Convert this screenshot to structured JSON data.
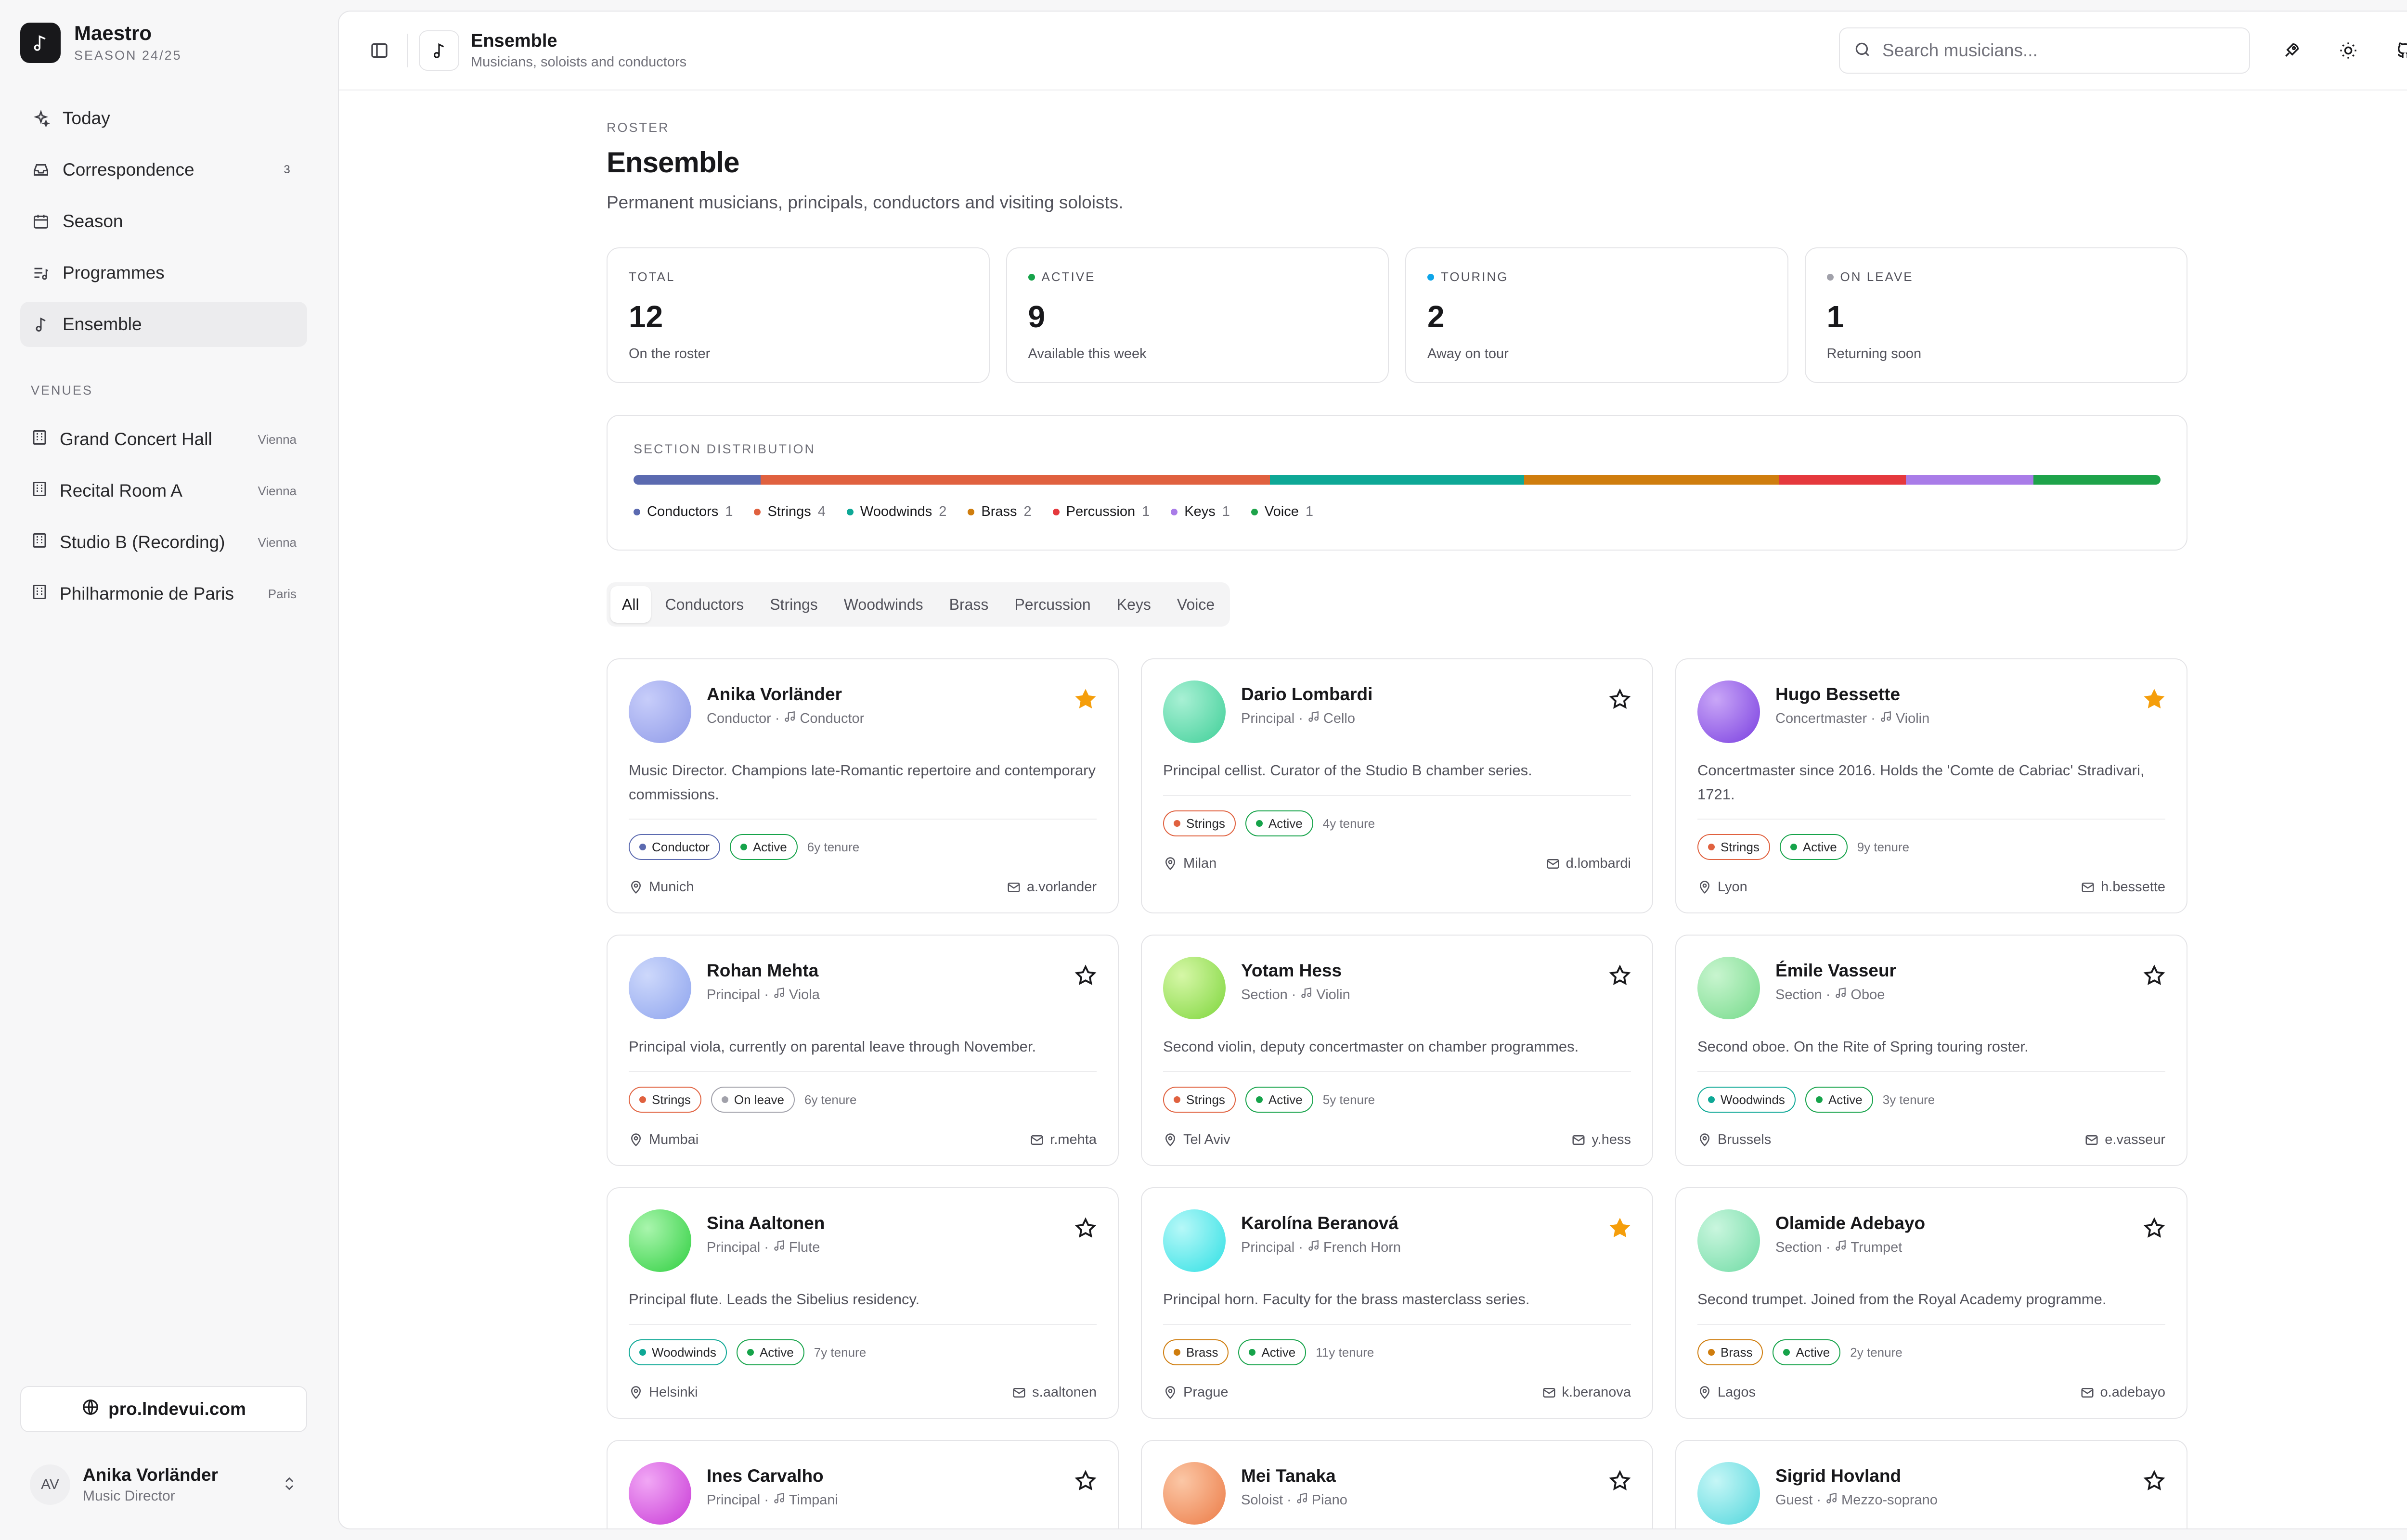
{
  "app": {
    "name": "Maestro",
    "season": "SEASON 24/25"
  },
  "nav": [
    {
      "label": "Today",
      "icon": "sparkle-icon"
    },
    {
      "label": "Correspondence",
      "icon": "inbox-icon",
      "count": "3"
    },
    {
      "label": "Season",
      "icon": "calendar-icon"
    },
    {
      "label": "Programmes",
      "icon": "list-music-icon"
    },
    {
      "label": "Ensemble",
      "icon": "music-note-icon",
      "active": true
    }
  ],
  "venues_header": "VENUES",
  "venues": [
    {
      "name": "Grand Concert Hall",
      "city": "Vienna"
    },
    {
      "name": "Recital Room A",
      "city": "Vienna"
    },
    {
      "name": "Studio B (Recording)",
      "city": "Vienna"
    },
    {
      "name": "Philharmonie de Paris",
      "city": "Paris"
    }
  ],
  "promo": "pro.lndevui.com",
  "user": {
    "initials": "AV",
    "name": "Anika Vorländer",
    "role": "Music Director"
  },
  "topbar": {
    "title": "Ensemble",
    "subtitle": "Musicians, soloists and conductors",
    "search_placeholder": "Search musicians..."
  },
  "page": {
    "eyebrow": "ROSTER",
    "title": "Ensemble",
    "lead": "Permanent musicians, principals, conductors and visiting soloists."
  },
  "stats": [
    {
      "label": "TOTAL",
      "value": "12",
      "note": "On the roster",
      "dot": ""
    },
    {
      "label": "ACTIVE",
      "value": "9",
      "note": "Available this week",
      "dot": "#16a34a"
    },
    {
      "label": "TOURING",
      "value": "2",
      "note": "Away on tour",
      "dot": "#0ea5e9"
    },
    {
      "label": "ON LEAVE",
      "value": "1",
      "note": "Returning soon",
      "dot": "#a1a1aa"
    }
  ],
  "distribution": {
    "title": "SECTION DISTRIBUTION",
    "sections": [
      {
        "name": "Conductors",
        "count": 1,
        "color": "#5b6ab0"
      },
      {
        "name": "Strings",
        "count": 4,
        "color": "#e0613f"
      },
      {
        "name": "Woodwinds",
        "count": 2,
        "color": "#0ea896"
      },
      {
        "name": "Brass",
        "count": 2,
        "color": "#cf7d0e"
      },
      {
        "name": "Percussion",
        "count": 1,
        "color": "#e5393d"
      },
      {
        "name": "Keys",
        "count": 1,
        "color": "#a97ce8"
      },
      {
        "name": "Voice",
        "count": 1,
        "color": "#1ea34a"
      }
    ]
  },
  "tabs": [
    "All",
    "Conductors",
    "Strings",
    "Woodwinds",
    "Brass",
    "Percussion",
    "Keys",
    "Voice"
  ],
  "musicians": [
    {
      "name": "Anika Vorländer",
      "rank": "Conductor",
      "instrument": "Conductor",
      "bio": "Music Director. Champions late-Romantic repertoire and contemporary commissions.",
      "section": "Conductor",
      "section_color": "#5b6ab0",
      "status": "Active",
      "tenure": "6y tenure",
      "city": "Munich",
      "handle": "a.vorlander",
      "starred": true,
      "orb": [
        "#c7cdfa",
        "#8f9ae8"
      ]
    },
    {
      "name": "Dario Lombardi",
      "rank": "Principal",
      "instrument": "Cello",
      "bio": "Principal cellist. Curator of the Studio B chamber series.",
      "section": "Strings",
      "section_color": "#e0613f",
      "status": "Active",
      "tenure": "4y tenure",
      "city": "Milan",
      "handle": "d.lombardi",
      "starred": false,
      "orb": [
        "#a8f0d4",
        "#3fcf98"
      ]
    },
    {
      "name": "Hugo Bessette",
      "rank": "Concertmaster",
      "instrument": "Violin",
      "bio": "Concertmaster since 2016. Holds the 'Comte de Cabriac' Stradivari, 1721.",
      "section": "Strings",
      "section_color": "#e0613f",
      "status": "Active",
      "tenure": "9y tenure",
      "city": "Lyon",
      "handle": "h.bessette",
      "starred": true,
      "orb": [
        "#c9a6f7",
        "#7a3fe0"
      ]
    },
    {
      "name": "Rohan Mehta",
      "rank": "Principal",
      "instrument": "Viola",
      "bio": "Principal viola, currently on parental leave through November.",
      "section": "Strings",
      "section_color": "#e0613f",
      "status": "On leave",
      "tenure": "6y tenure",
      "city": "Mumbai",
      "handle": "r.mehta",
      "starred": false,
      "orb": [
        "#cdd8fb",
        "#8ea4ee"
      ]
    },
    {
      "name": "Yotam Hess",
      "rank": "Section",
      "instrument": "Violin",
      "bio": "Second violin, deputy concertmaster on chamber programmes.",
      "section": "Strings",
      "section_color": "#e0613f",
      "status": "Active",
      "tenure": "5y tenure",
      "city": "Tel Aviv",
      "handle": "y.hess",
      "starred": false,
      "orb": [
        "#d6f7a7",
        "#7ed63c"
      ]
    },
    {
      "name": "Émile Vasseur",
      "rank": "Section",
      "instrument": "Oboe",
      "bio": "Second oboe. On the Rite of Spring touring roster.",
      "section": "Woodwinds",
      "section_color": "#0ea896",
      "status": "Active",
      "tenure": "3y tenure",
      "city": "Brussels",
      "handle": "e.vasseur",
      "starred": false,
      "orb": [
        "#c8f5cf",
        "#75da8a"
      ]
    },
    {
      "name": "Sina Aaltonen",
      "rank": "Principal",
      "instrument": "Flute",
      "bio": "Principal flute. Leads the Sibelius residency.",
      "section": "Woodwinds",
      "section_color": "#0ea896",
      "status": "Active",
      "tenure": "7y tenure",
      "city": "Helsinki",
      "handle": "s.aaltonen",
      "starred": false,
      "orb": [
        "#a9f5ad",
        "#2fcf40"
      ]
    },
    {
      "name": "Karolína Beranová",
      "rank": "Principal",
      "instrument": "French Horn",
      "bio": "Principal horn. Faculty for the brass masterclass series.",
      "section": "Brass",
      "section_color": "#cf7d0e",
      "status": "Active",
      "tenure": "11y tenure",
      "city": "Prague",
      "handle": "k.beranova",
      "starred": true,
      "orb": [
        "#b6f8f8",
        "#2fe0e4"
      ]
    },
    {
      "name": "Olamide Adebayo",
      "rank": "Section",
      "instrument": "Trumpet",
      "bio": "Second trumpet. Joined from the Royal Academy programme.",
      "section": "Brass",
      "section_color": "#cf7d0e",
      "status": "Active",
      "tenure": "2y tenure",
      "city": "Lagos",
      "handle": "o.adebayo",
      "starred": false,
      "orb": [
        "#c9f6de",
        "#6fdba4"
      ]
    },
    {
      "name": "Ines Carvalho",
      "rank": "Principal",
      "instrument": "Timpani",
      "bio": "",
      "section": "",
      "section_color": "",
      "status": "",
      "tenure": "",
      "city": "",
      "handle": "",
      "starred": false,
      "orb": [
        "#f1a7f5",
        "#c83ad6"
      ]
    },
    {
      "name": "Mei Tanaka",
      "rank": "Soloist",
      "instrument": "Piano",
      "bio": "",
      "section": "",
      "section_color": "",
      "status": "",
      "tenure": "",
      "city": "",
      "handle": "",
      "starred": false,
      "orb": [
        "#fbc7a6",
        "#ec7b46"
      ]
    },
    {
      "name": "Sigrid Hovland",
      "rank": "Guest",
      "instrument": "Mezzo-soprano",
      "bio": "",
      "section": "",
      "section_color": "",
      "status": "",
      "tenure": "",
      "city": "",
      "handle": "",
      "starred": false,
      "orb": [
        "#c5f6f6",
        "#50d6dc"
      ]
    }
  ],
  "colors": {
    "active": "#16a34a",
    "leave": "#a1a1aa",
    "star": "#f59e0b"
  }
}
